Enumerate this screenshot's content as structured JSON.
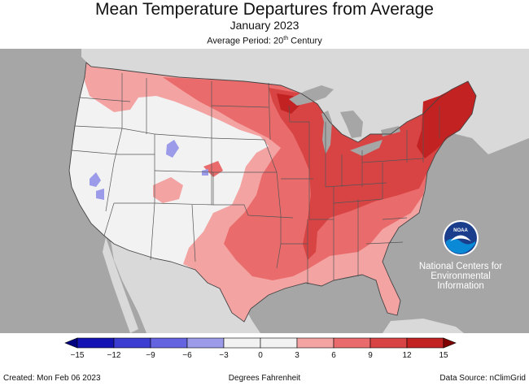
{
  "header": {
    "title": "Mean Temperature Departures from Average",
    "subtitle": "January 2023",
    "period_prefix": "Average Period: 20",
    "period_sup": "th",
    "period_suffix": " Century"
  },
  "map": {
    "colors": {
      "background": "#a6a6a6",
      "land_outside": "#d9d9d9",
      "lakes": "#a6a6a6",
      "state_lines": "#555555",
      "near_normal": "#f2f2f2",
      "anom_plus_3_to_6": "#f4a3a3",
      "anom_plus_6_to_9": "#ea6b6b",
      "anom_plus_9_to_12": "#d84444",
      "anom_plus_12_to_15": "#c22222",
      "anom_minus_3_to_0": "#9b9bea"
    }
  },
  "logo": {
    "label": "NOAA",
    "org_lines": [
      "National Centers for",
      "Environmental",
      "Information"
    ]
  },
  "legend": {
    "unit": "Degrees Fahrenheit",
    "bins": [
      {
        "color": "#1414b4"
      },
      {
        "color": "#3c3cd2"
      },
      {
        "color": "#6464e1"
      },
      {
        "color": "#9b9bea"
      },
      {
        "color": "#f2f2f2"
      },
      {
        "color": "#f2f2f2"
      },
      {
        "color": "#f4a3a3"
      },
      {
        "color": "#ea6b6b"
      },
      {
        "color": "#d84444"
      },
      {
        "color": "#c22222"
      }
    ],
    "low_arrow_color": "#000080",
    "high_arrow_color": "#800000",
    "ticks": [
      "−15",
      "−12",
      "−9",
      "−6",
      "−3",
      "0",
      "3",
      "6",
      "9",
      "12",
      "15"
    ]
  },
  "footer": {
    "created": "Created: Mon Feb 06 2023",
    "unit": "Degrees Fahrenheit",
    "source": "Data Source: nClimGrid"
  }
}
